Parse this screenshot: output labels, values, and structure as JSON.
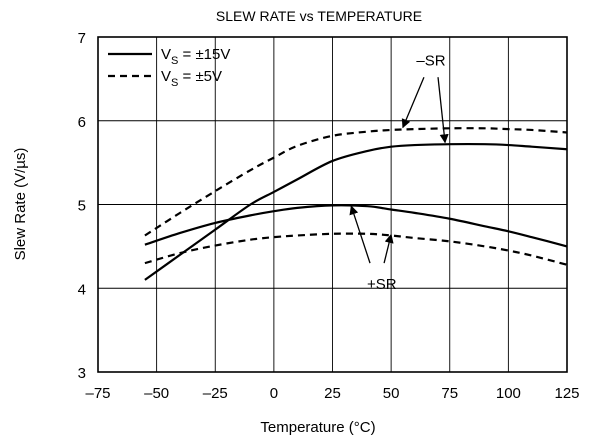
{
  "chart_data": {
    "type": "line",
    "title": "SLEW RATE vs TEMPERATURE",
    "xlabel": "Temperature (°C)",
    "ylabel": "Slew Rate (V/µs)",
    "xlim": [
      -75,
      125
    ],
    "ylim": [
      3,
      7
    ],
    "xticks": [
      -75,
      -50,
      -25,
      0,
      25,
      50,
      75,
      100,
      125
    ],
    "yticks": [
      3,
      4,
      5,
      6,
      7
    ],
    "xtick_labels": [
      "–75",
      "–50",
      "–25",
      "0",
      "25",
      "50",
      "75",
      "100",
      "125"
    ],
    "ytick_labels": [
      "3",
      "4",
      "5",
      "6",
      "7"
    ],
    "grid": true,
    "legend": {
      "placement": "top-left",
      "entries": [
        {
          "text_main": "V",
          "text_sub": "S",
          "text_rest": " = ±15V",
          "style": "solid"
        },
        {
          "text_main": "V",
          "text_sub": "S",
          "text_rest": " = ±5V",
          "style": "dashed"
        }
      ]
    },
    "series": [
      {
        "group": "–SR",
        "supply": "±15V",
        "style": "solid",
        "x": [
          -55,
          -40,
          -25,
          -10,
          0,
          10,
          25,
          40,
          50,
          60,
          75,
          90,
          100,
          110,
          125
        ],
        "y": [
          4.1,
          4.4,
          4.7,
          5.0,
          5.15,
          5.3,
          5.52,
          5.64,
          5.69,
          5.71,
          5.72,
          5.72,
          5.71,
          5.69,
          5.66
        ]
      },
      {
        "group": "–SR",
        "supply": "±5V",
        "style": "dashed",
        "x": [
          -55,
          -40,
          -25,
          -10,
          0,
          10,
          25,
          40,
          50,
          60,
          75,
          90,
          100,
          110,
          125
        ],
        "y": [
          4.63,
          4.9,
          5.16,
          5.41,
          5.56,
          5.7,
          5.82,
          5.87,
          5.89,
          5.9,
          5.91,
          5.91,
          5.9,
          5.89,
          5.86
        ]
      },
      {
        "group": "+SR",
        "supply": "±15V",
        "style": "solid",
        "x": [
          -55,
          -40,
          -25,
          -10,
          0,
          10,
          25,
          40,
          50,
          60,
          75,
          90,
          100,
          110,
          125
        ],
        "y": [
          4.52,
          4.66,
          4.78,
          4.87,
          4.92,
          4.96,
          4.99,
          4.98,
          4.94,
          4.9,
          4.83,
          4.74,
          4.68,
          4.61,
          4.5
        ]
      },
      {
        "group": "+SR",
        "supply": "±5V",
        "style": "dashed",
        "x": [
          -55,
          -40,
          -25,
          -10,
          0,
          10,
          25,
          40,
          50,
          60,
          75,
          90,
          100,
          110,
          125
        ],
        "y": [
          4.3,
          4.42,
          4.51,
          4.58,
          4.61,
          4.63,
          4.65,
          4.65,
          4.63,
          4.6,
          4.56,
          4.5,
          4.45,
          4.39,
          4.28
        ]
      }
    ],
    "annotations": [
      {
        "text": "–SR",
        "label_at": [
          67,
          6.72
        ],
        "arrows": [
          {
            "from": [
              64,
              6.52
            ],
            "to": [
              55,
              5.92
            ]
          },
          {
            "from": [
              70,
              6.52
            ],
            "to": [
              73,
              5.74
            ]
          }
        ]
      },
      {
        "text": "+SR",
        "label_at": [
          46,
          4.05
        ],
        "arrows": [
          {
            "from": [
              41,
              4.3
            ],
            "to": [
              33,
              4.98
            ]
          },
          {
            "from": [
              47,
              4.3
            ],
            "to": [
              50,
              4.64
            ]
          }
        ]
      }
    ]
  }
}
